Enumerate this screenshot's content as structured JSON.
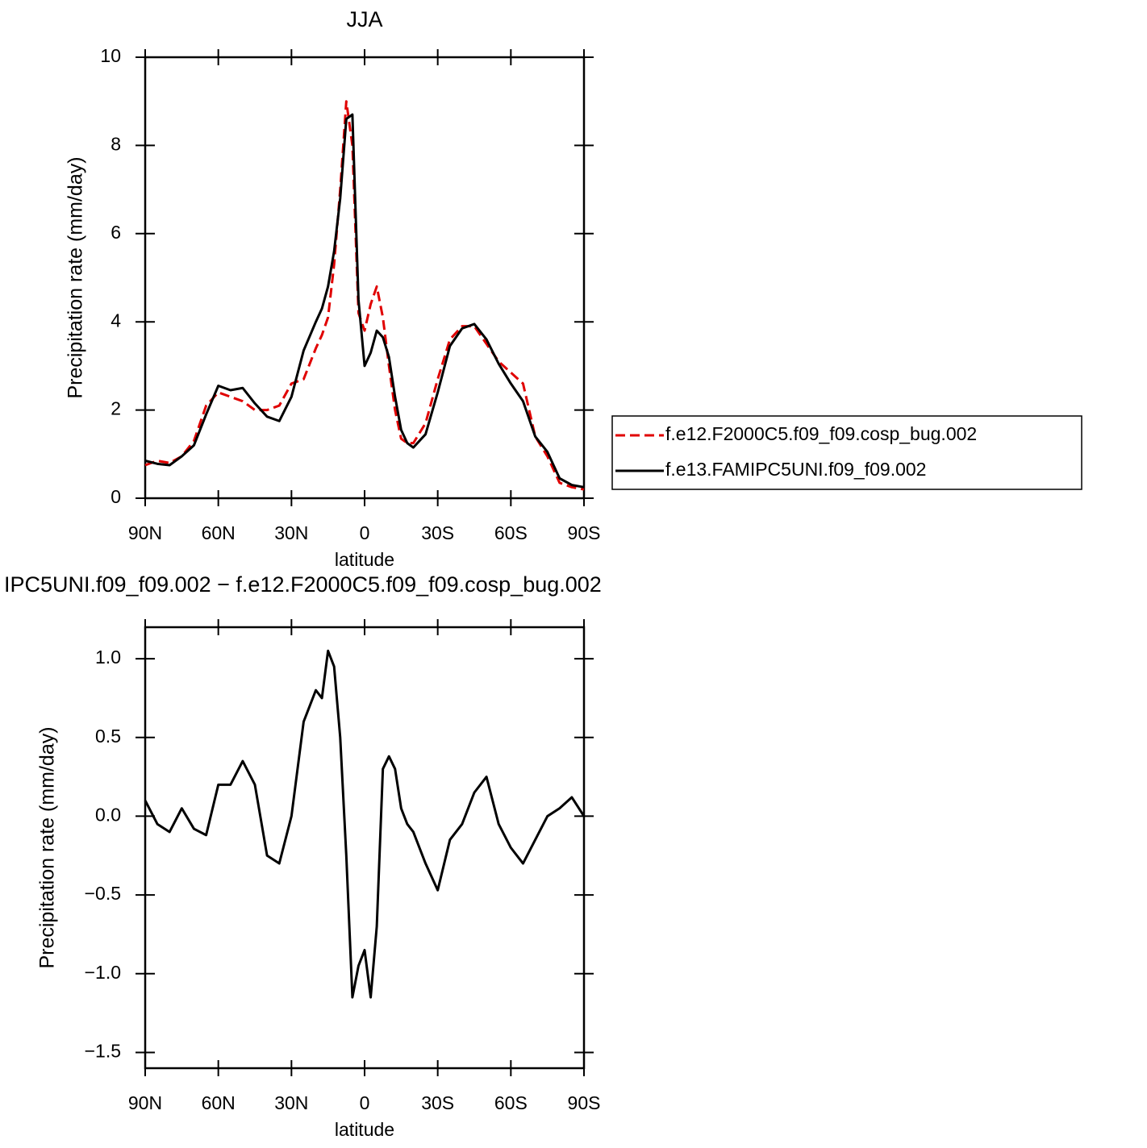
{
  "chart_data": [
    {
      "type": "line",
      "title": "JJA",
      "xlabel": "latitude",
      "ylabel": "Precipitation rate (mm/day)",
      "x": [
        90,
        85,
        80,
        75,
        70,
        65,
        60,
        55,
        50,
        45,
        40,
        35,
        30,
        25,
        20,
        17.5,
        15,
        12.5,
        10,
        7.5,
        5,
        2.5,
        0,
        -2.5,
        -5,
        -7.5,
        -10,
        -12.5,
        -15,
        -17.5,
        -20,
        -25,
        -30,
        -35,
        -40,
        -45,
        -50,
        -55,
        -60,
        -65,
        -70,
        -75,
        -80,
        -85,
        -90
      ],
      "xlim": [
        90,
        -90
      ],
      "xticks": [
        {
          "value": 90,
          "label": "90N"
        },
        {
          "value": 60,
          "label": "60N"
        },
        {
          "value": 30,
          "label": "30N"
        },
        0,
        {
          "value": -30,
          "label": "30S"
        },
        {
          "value": -60,
          "label": "60S"
        },
        {
          "value": -90,
          "label": "90S"
        }
      ],
      "ylim": [
        0,
        10
      ],
      "yticks": [
        0,
        2,
        4,
        6,
        8,
        10
      ],
      "series": [
        {
          "name": "f.e12.F2000C5.f09_f09.cosp_bug.002",
          "color": "#e00000",
          "style": "dashed",
          "values": [
            0.75,
            0.85,
            0.8,
            0.95,
            1.3,
            2.1,
            2.4,
            2.3,
            2.2,
            2.0,
            2.0,
            2.1,
            2.6,
            2.7,
            3.4,
            3.7,
            4.1,
            5.3,
            7.0,
            9.0,
            8.0,
            4.2,
            3.8,
            4.4,
            4.8,
            4.1,
            3.0,
            2.0,
            1.35,
            1.25,
            1.25,
            1.7,
            2.7,
            3.6,
            3.9,
            3.9,
            3.5,
            3.1,
            2.85,
            2.6,
            1.4,
            0.95,
            0.35,
            0.25,
            0.2
          ]
        },
        {
          "name": "f.e13.FAMIPC5UNI.f09_f09.002",
          "color": "#000000",
          "style": "solid",
          "values": [
            0.85,
            0.78,
            0.75,
            0.95,
            1.2,
            1.9,
            2.55,
            2.45,
            2.5,
            2.15,
            1.85,
            1.75,
            2.3,
            3.35,
            4.0,
            4.3,
            4.8,
            5.6,
            6.8,
            8.6,
            8.7,
            4.5,
            3.0,
            3.3,
            3.8,
            3.65,
            3.2,
            2.3,
            1.55,
            1.25,
            1.15,
            1.45,
            2.4,
            3.45,
            3.85,
            3.95,
            3.6,
            3.05,
            2.6,
            2.2,
            1.4,
            1.05,
            0.45,
            0.3,
            0.25
          ]
        }
      ]
    },
    {
      "type": "line",
      "title": "IPC5UNI.f09_f09.002 − f.e12.F2000C5.f09_f09.cosp_bug.002",
      "xlabel": "latitude",
      "ylabel": "Precipitation rate (mm/day)",
      "x": [
        90,
        85,
        80,
        75,
        70,
        65,
        60,
        55,
        50,
        45,
        40,
        35,
        30,
        25,
        20,
        17.5,
        15,
        12.5,
        10,
        7.5,
        5,
        2.5,
        0,
        -2.5,
        -5,
        -7.5,
        -10,
        -12.5,
        -15,
        -17.5,
        -20,
        -25,
        -30,
        -35,
        -40,
        -45,
        -50,
        -55,
        -60,
        -65,
        -70,
        -75,
        -80,
        -85,
        -90
      ],
      "xlim": [
        90,
        -90
      ],
      "xticks": [
        {
          "value": 90,
          "label": "90N"
        },
        {
          "value": 60,
          "label": "60N"
        },
        {
          "value": 30,
          "label": "30N"
        },
        0,
        {
          "value": -30,
          "label": "30S"
        },
        {
          "value": -60,
          "label": "60S"
        },
        {
          "value": -90,
          "label": "90S"
        }
      ],
      "ylim": [
        -1.6,
        1.2
      ],
      "yticks": [
        {
          "value": -1.5,
          "label": "−1.5"
        },
        {
          "value": -1,
          "label": "−1.0"
        },
        {
          "value": -0.5,
          "label": "−0.5"
        },
        {
          "value": 0,
          "label": "0.0"
        },
        0.5,
        {
          "value": 1,
          "label": "1.0"
        }
      ],
      "color": "#000000",
      "values": [
        0.1,
        -0.05,
        -0.1,
        0.05,
        -0.08,
        -0.12,
        0.2,
        0.2,
        0.35,
        0.2,
        -0.25,
        -0.3,
        0.0,
        0.6,
        0.8,
        0.75,
        1.05,
        0.95,
        0.5,
        -0.25,
        -1.15,
        -0.95,
        -0.85,
        -1.15,
        -0.7,
        0.3,
        0.38,
        0.3,
        0.05,
        -0.05,
        -0.1,
        -0.3,
        -0.47,
        -0.15,
        -0.05,
        0.15,
        0.25,
        -0.05,
        -0.2,
        -0.3,
        -0.15,
        0.0,
        0.05,
        0.12,
        0.0
      ]
    }
  ]
}
